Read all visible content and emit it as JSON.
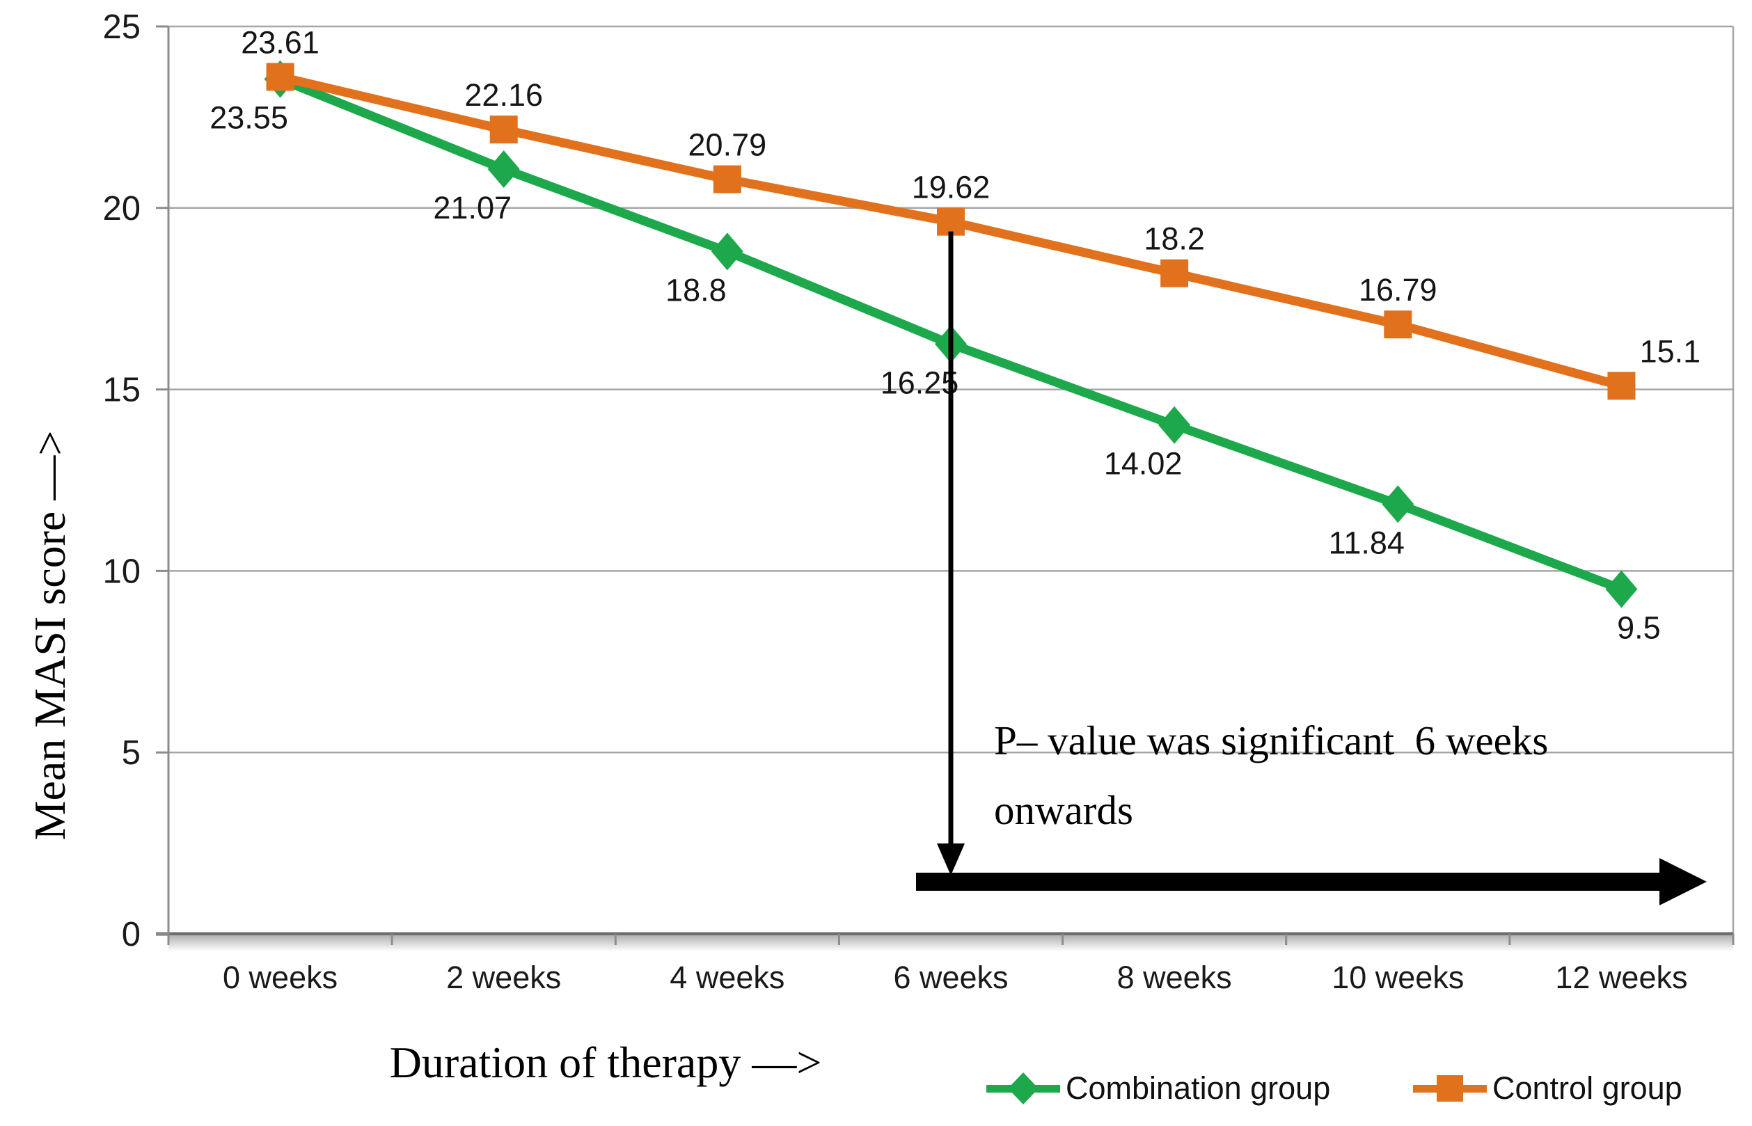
{
  "figure": {
    "background": "#ffffff",
    "gridline_color": "#a6a6a6",
    "axis_color": "#8c8c8c",
    "x_axis_color": "#6e6e6e",
    "text_color": "#1a1a1a",
    "annotation_color": "#000000"
  },
  "chart_data": {
    "type": "line",
    "categories": [
      "0 weeks",
      "2 weeks",
      "4 weeks",
      "6 weeks",
      "8 weeks",
      "10 weeks",
      "12 weeks"
    ],
    "series": [
      {
        "name": "Combination group",
        "color": "#1ea84c",
        "marker": "diamond",
        "values": [
          23.55,
          21.07,
          18.8,
          16.25,
          14.02,
          11.84,
          9.5
        ],
        "point_labels": [
          "23.55",
          "21.07",
          "18.8",
          "16.25",
          "14.02",
          "11.84",
          "9.5"
        ]
      },
      {
        "name": "Control group",
        "color": "#e2711d",
        "marker": "square",
        "values": [
          23.61,
          22.16,
          20.79,
          19.62,
          18.2,
          16.79,
          15.1
        ],
        "point_labels": [
          "23.61",
          "22.16",
          "20.79",
          "19.62",
          "18.2",
          "16.79",
          "15.1"
        ]
      }
    ],
    "xlabel": "Duration of therapy —>",
    "ylabel": "Mean MASI score —>",
    "ylim": [
      0,
      25
    ],
    "yticks": [
      0,
      5,
      10,
      15,
      20,
      25
    ],
    "grid": true,
    "legend_position": "bottom-right",
    "annotation": {
      "lines": [
        "P– value was significant  6 weeks",
        "onwards"
      ],
      "at_category": "6 weeks"
    }
  }
}
